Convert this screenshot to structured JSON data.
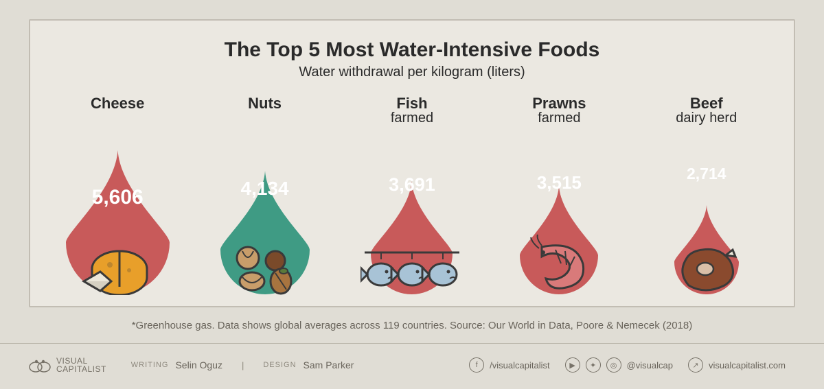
{
  "infographic": {
    "type": "infographic",
    "title": "The Top 5 Most Water-Intensive Foods",
    "subtitle": "Water withdrawal per kilogram (liters)",
    "background_color": "#e0ddd5",
    "panel_color": "#ebe8e1",
    "panel_border_color": "#c2bdb3",
    "title_color": "#2a2a2a",
    "title_fontsize": 30,
    "subtitle_fontsize": 20,
    "value_color": "#ffffff",
    "footnote": "*Greenhouse gas. Data shows global averages across 119 countries. Source: Our World in Data, Poore & Nemecek (2018)",
    "footnote_color": "#6a655c",
    "drop_colors": {
      "red": "#c85a5a",
      "teal": "#3f9b84"
    },
    "items": [
      {
        "label": "Cheese",
        "sublabel": "",
        "value": "5,606",
        "num": 5606,
        "drop_color": "#c85a5a",
        "drop_height": 210,
        "value_fontsize": 30,
        "icon": "cheese"
      },
      {
        "label": "Nuts",
        "sublabel": "",
        "value": "4,134",
        "num": 4134,
        "drop_color": "#3f9b84",
        "drop_height": 180,
        "value_fontsize": 28,
        "icon": "nuts"
      },
      {
        "label": "Fish",
        "sublabel": "farmed",
        "value": "3,691",
        "num": 3691,
        "drop_color": "#c85a5a",
        "drop_height": 165,
        "value_fontsize": 27,
        "icon": "fish"
      },
      {
        "label": "Prawns",
        "sublabel": "farmed",
        "value": "3,515",
        "num": 3515,
        "drop_color": "#c85a5a",
        "drop_height": 158,
        "value_fontsize": 26,
        "icon": "prawns"
      },
      {
        "label": "Beef",
        "sublabel": "dairy herd",
        "value": "2,714",
        "num": 2714,
        "drop_color": "#c85a5a",
        "drop_height": 130,
        "value_fontsize": 23,
        "icon": "beef"
      }
    ]
  },
  "footer": {
    "logo_text_line1": "VISUAL",
    "logo_text_line2": "CAPITALIST",
    "writing_label": "WRITING",
    "writing_value": "Selin Oguz",
    "design_label": "DESIGN",
    "design_value": "Sam Parker",
    "socials": [
      {
        "icon": "f",
        "name": "facebook-icon",
        "label": "/visualcapitalist"
      },
      {
        "icon": "▶",
        "name": "youtube-icon",
        "label": ""
      },
      {
        "icon": "✦",
        "name": "twitter-icon",
        "label": ""
      },
      {
        "icon": "◎",
        "name": "instagram-icon",
        "label": "@visualcap"
      },
      {
        "icon": "↗",
        "name": "link-icon",
        "label": "visualcapitalist.com"
      }
    ],
    "text_color": "#777268"
  }
}
